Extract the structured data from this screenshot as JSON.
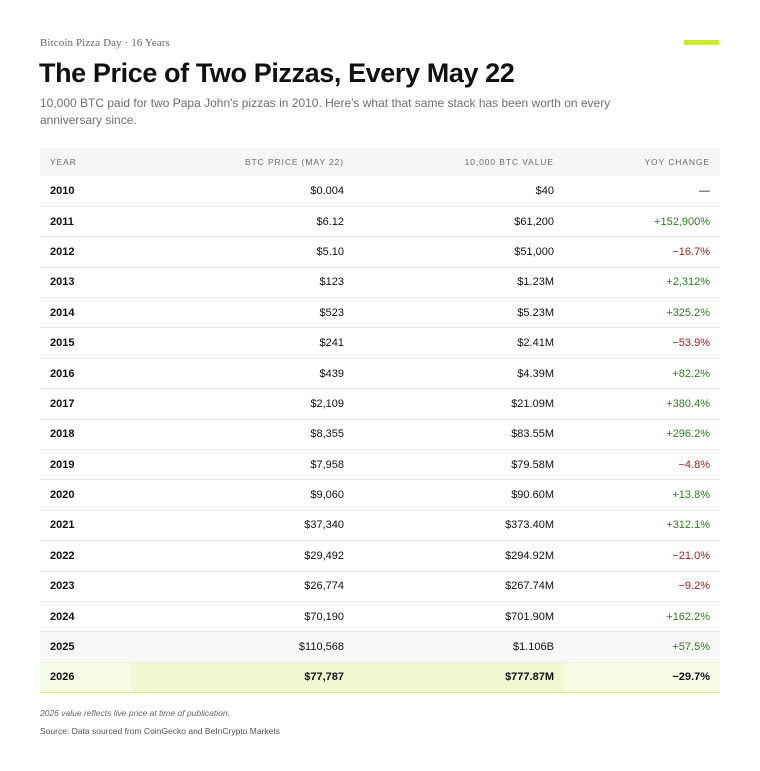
{
  "header": {
    "kicker": "Bitcoin Pizza Day · 16 Years",
    "title": "The Price of Two Pizzas, Every May 22",
    "subtitle": "10,000 BTC paid for two Papa John's pizzas in 2010. Here's what that same stack has been worth on every anniversary since.",
    "accent_color": "#cdea2e"
  },
  "table": {
    "columns": {
      "year": "YEAR",
      "price": "BTC PRICE (MAY 22)",
      "value": "10,000 BTC VALUE",
      "yoy": "YOY CHANGE"
    },
    "rows": [
      {
        "year": "2010",
        "price": "$0.004",
        "value": "$40",
        "yoy": "—",
        "trend": "neutral"
      },
      {
        "year": "2011",
        "price": "$6.12",
        "value": "$61,200",
        "yoy": "+152,900%",
        "trend": "pos"
      },
      {
        "year": "2012",
        "price": "$5.10",
        "value": "$51,000",
        "yoy": "−16.7%",
        "trend": "neg"
      },
      {
        "year": "2013",
        "price": "$123",
        "value": "$1.23M",
        "yoy": "+2,312%",
        "trend": "pos"
      },
      {
        "year": "2014",
        "price": "$523",
        "value": "$5.23M",
        "yoy": "+325.2%",
        "trend": "pos"
      },
      {
        "year": "2015",
        "price": "$241",
        "value": "$2.41M",
        "yoy": "−53.9%",
        "trend": "neg"
      },
      {
        "year": "2016",
        "price": "$439",
        "value": "$4.39M",
        "yoy": "+82.2%",
        "trend": "pos"
      },
      {
        "year": "2017",
        "price": "$2,109",
        "value": "$21.09M",
        "yoy": "+380.4%",
        "trend": "pos"
      },
      {
        "year": "2018",
        "price": "$8,355",
        "value": "$83.55M",
        "yoy": "+296.2%",
        "trend": "pos"
      },
      {
        "year": "2019",
        "price": "$7,958",
        "value": "$79.58M",
        "yoy": "−4.8%",
        "trend": "neg"
      },
      {
        "year": "2020",
        "price": "$9,060",
        "value": "$90.60M",
        "yoy": "+13.8%",
        "trend": "pos"
      },
      {
        "year": "2021",
        "price": "$37,340",
        "value": "$373.40M",
        "yoy": "+312.1%",
        "trend": "pos"
      },
      {
        "year": "2022",
        "price": "$29,492",
        "value": "$294.92M",
        "yoy": "−21.0%",
        "trend": "neg"
      },
      {
        "year": "2023",
        "price": "$26,774",
        "value": "$267.74M",
        "yoy": "−9.2%",
        "trend": "neg"
      },
      {
        "year": "2024",
        "price": "$70,190",
        "value": "$701.90M",
        "yoy": "+162.2%",
        "trend": "pos"
      },
      {
        "year": "2025",
        "price": "$110,568",
        "value": "$1.106B",
        "yoy": "+57.5%",
        "trend": "pos",
        "style": "shade"
      },
      {
        "year": "2026",
        "price": "$77,787",
        "value": "$777.87M",
        "yoy": "−29.7%",
        "trend": "neg",
        "style": "highlight"
      }
    ],
    "colors": {
      "positive": "#2f7d1f",
      "negative": "#a32020",
      "highlight": "#f6fbe4"
    }
  },
  "footer": {
    "footnote": "2026 value reflects live price at time of publication.",
    "source": "Source: Data sourced from CoinGecko and BeInCrypto Markets"
  }
}
